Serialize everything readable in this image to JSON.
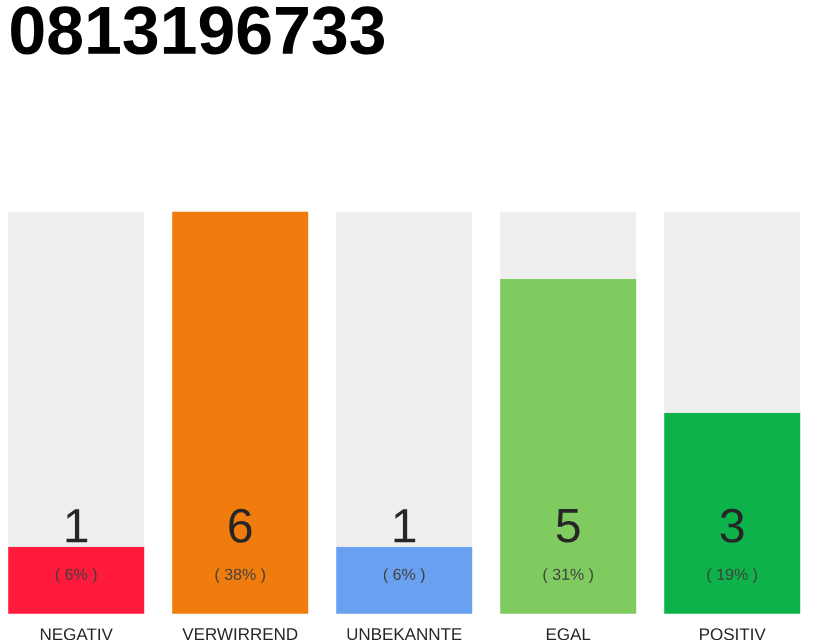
{
  "chart_data": {
    "type": "bar",
    "title": "0813196733",
    "categories": [
      "NEGATIV",
      "VERWIRREND",
      "UNBEKANNTE",
      "EGAL",
      "POSITIV"
    ],
    "stacked": true,
    "series": [
      {
        "colors": [
          "#ff1a3c",
          "#f07c0d",
          "#6aa0f0",
          "#7fcb5f",
          "#0db34a"
        ],
        "values": [
          1,
          6,
          1,
          5,
          3
        ],
        "value_labels": [
          "1",
          "6",
          "1",
          "5",
          "3"
        ]
      },
      {
        "color": "#eeeeee",
        "values": [
          5,
          0,
          5,
          1,
          3
        ]
      }
    ],
    "annotations": [
      "( 6% )",
      "( 38% )",
      "( 6% )",
      "( 31% )",
      "( 19% )"
    ]
  }
}
